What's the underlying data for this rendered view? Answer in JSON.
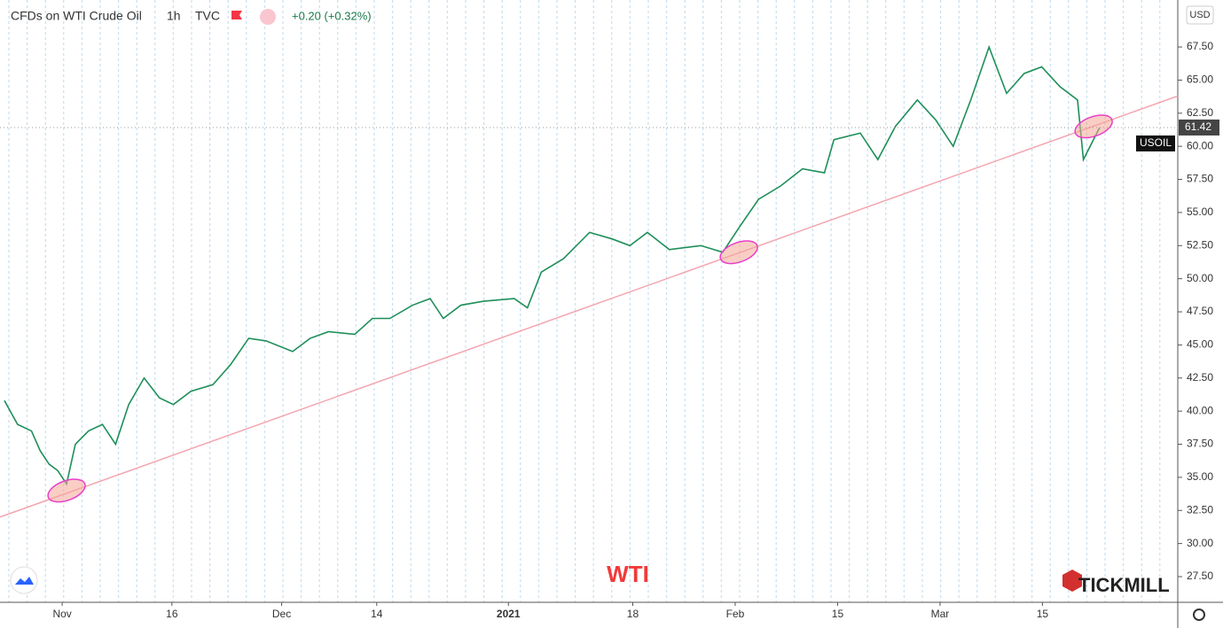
{
  "chart_data": {
    "type": "line",
    "title": "CFDs on WTI Crude Oil",
    "interval": "1h",
    "source": "TVC",
    "change": "+0.20 (+0.32%)",
    "currency": "USD",
    "symbol": "USOIL",
    "last_price": 61.42,
    "annotation": "WTI",
    "brand": "TICKMILL",
    "x": [
      -7.9,
      -6.1,
      -4.2,
      -3.0,
      -1.8,
      -0.6,
      0.6,
      1.8,
      3.6,
      5.5,
      7.3,
      9.1,
      11.2,
      13.3,
      15.2,
      17.6,
      20.6,
      23.0,
      25.5,
      27.9,
      31.5,
      33.9,
      36.4,
      40.0,
      42.4,
      44.8,
      47.9,
      50.3,
      52.1,
      54.5,
      57.6,
      61.8,
      63.6,
      65.5,
      68.5,
      72.1,
      75.2,
      77.6,
      80.0,
      83.0,
      87.3,
      90.3,
      92.7,
      95.2,
      98.2,
      101.2,
      104.2,
      105.5,
      109.1,
      111.5,
      113.9,
      116.9,
      119.4,
      121.8,
      124.2,
      126.7,
      129.1,
      131.5,
      133.9,
      136.4,
      138.8,
      139.6,
      141.8
    ],
    "series": [
      {
        "color": "#1e8f5a",
        "values": [
          40.8,
          39,
          38.5,
          37,
          36,
          35.5,
          34.5,
          37.5,
          38.5,
          39,
          37.5,
          40.5,
          42.5,
          41,
          40.5,
          41.5,
          42,
          43.5,
          45.5,
          45.3,
          44.5,
          45.5,
          46,
          45.8,
          47,
          47,
          48,
          48.5,
          47,
          48,
          48.3,
          48.5,
          47.8,
          50.5,
          51.5,
          53.5,
          53,
          52.5,
          53.5,
          52.2,
          52.5,
          52,
          54,
          56,
          57,
          58.3,
          58,
          60.5,
          61,
          59,
          61.5,
          63.5,
          62,
          60,
          63.5,
          67.5,
          64,
          65.5,
          66,
          64.5,
          63.5,
          59,
          61.4
        ]
      }
    ],
    "trendline": {
      "x": [
        -8.5,
        152.5
      ],
      "values": [
        32,
        63.8
      ],
      "color": "#f4a6b0"
    },
    "highlights": {
      "x": [
        0.6,
        92.5,
        141
      ],
      "values": [
        34,
        52,
        61.5
      ],
      "color": "#e83fc8"
    },
    "xlim": [
      -8.5,
      152.5
    ],
    "ylim": [
      25.56,
      71.05
    ],
    "xticks": [
      {
        "value": 0,
        "label": "Nov"
      },
      {
        "value": 15,
        "label": "16"
      },
      {
        "value": 30,
        "label": "Dec"
      },
      {
        "value": 43,
        "label": "14"
      },
      {
        "value": 61,
        "label": "2021"
      },
      {
        "value": 78,
        "label": "18"
      },
      {
        "value": 92,
        "label": "Feb"
      },
      {
        "value": 106,
        "label": "15"
      },
      {
        "value": 120,
        "label": "Mar"
      },
      {
        "value": 134,
        "label": "15"
      }
    ],
    "yticks": [
      {
        "value": 27.5,
        "label": "27.50"
      },
      {
        "value": 30,
        "label": "30.00"
      },
      {
        "value": 32.5,
        "label": "32.50"
      },
      {
        "value": 35,
        "label": "35.00"
      },
      {
        "value": 37.5,
        "label": "37.50"
      },
      {
        "value": 40,
        "label": "40.00"
      },
      {
        "value": 42.5,
        "label": "42.50"
      },
      {
        "value": 45,
        "label": "45.00"
      },
      {
        "value": 47.5,
        "label": "47.50"
      },
      {
        "value": 50,
        "label": "50.00"
      },
      {
        "value": 52.5,
        "label": "52.50"
      },
      {
        "value": 55,
        "label": "55.00"
      },
      {
        "value": 57.5,
        "label": "57.50"
      },
      {
        "value": 60,
        "label": "60.00"
      },
      {
        "value": 62.5,
        "label": "62.50"
      },
      {
        "value": 65,
        "label": "65.00"
      },
      {
        "value": 67.5,
        "label": "67.50"
      }
    ]
  }
}
